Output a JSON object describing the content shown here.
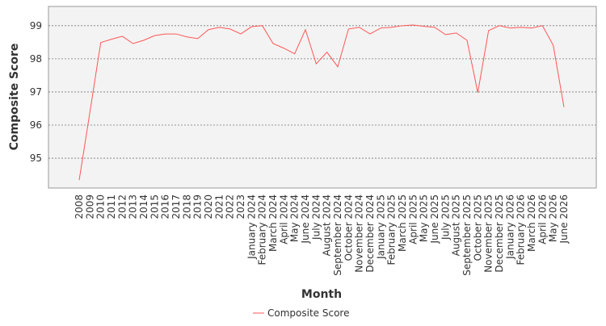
{
  "chart_data": {
    "type": "line",
    "x_label": "Month",
    "y_label": "Composite Score",
    "categories": [
      "2008",
      "2009",
      "2010",
      "2011",
      "2012",
      "2013",
      "2014",
      "2015",
      "2016",
      "2017",
      "2018",
      "2019",
      "2020",
      "2021",
      "2022",
      "2023",
      "January 2024",
      "February 2024",
      "March 2024",
      "April 2024",
      "May 2024",
      "June 2024",
      "July 2024",
      "August 2024",
      "September 2024",
      "October 2024",
      "November 2024",
      "December 2024",
      "January 2025",
      "February 2025",
      "March 2025",
      "April 2025",
      "May 2025",
      "June 2025",
      "July 2025",
      "August 2025",
      "September 2025",
      "October 2025",
      "November 2025",
      "December 2025",
      "January 2026",
      "February 2026",
      "March 2026",
      "April 2026",
      "May 2026",
      "June 2026"
    ],
    "series": [
      {
        "name": "Composite Score",
        "color": "#ff5555",
        "values": [
          94.34,
          96.4,
          98.49,
          98.59,
          98.68,
          98.46,
          98.56,
          98.7,
          98.75,
          98.75,
          98.66,
          98.61,
          98.88,
          98.95,
          98.9,
          98.75,
          98.97,
          99.0,
          98.46,
          98.32,
          98.15,
          98.88,
          97.85,
          98.2,
          97.76,
          98.9,
          98.95,
          98.75,
          98.93,
          98.95,
          99.0,
          99.02,
          98.98,
          98.95,
          98.73,
          98.78,
          98.56,
          96.98,
          98.85,
          99.0,
          98.93,
          98.95,
          98.93,
          99.0,
          98.41,
          96.54
        ]
      }
    ],
    "ylim": [
      94.1,
      99.58
    ],
    "yticks": [
      95,
      96,
      97,
      98,
      99
    ],
    "grid": true,
    "legend": "bottom"
  }
}
